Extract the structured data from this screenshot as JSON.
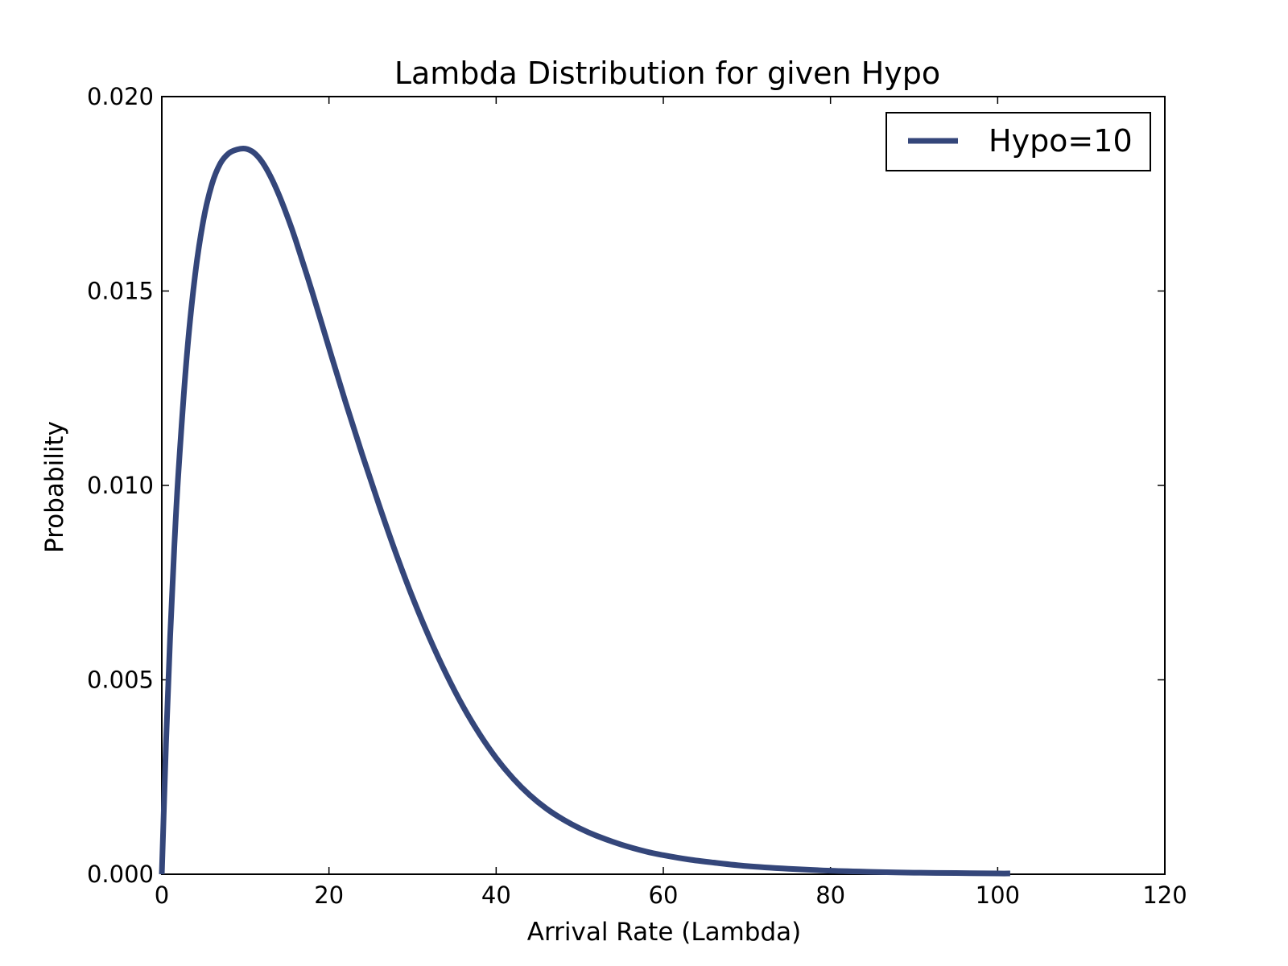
{
  "chart_data": {
    "type": "line",
    "title": "Lambda Distribution for given Hypo",
    "xlabel": "Arrival Rate (Lambda)",
    "ylabel": "Probability",
    "xlim": [
      0,
      120
    ],
    "ylim": [
      0,
      0.02
    ],
    "xticks": [
      "0",
      "20",
      "40",
      "60",
      "80",
      "100",
      "120"
    ],
    "yticks": [
      "0.000",
      "0.005",
      "0.010",
      "0.015",
      "0.020"
    ],
    "grid": false,
    "legend_position": "top-right",
    "series": [
      {
        "name": "Hypo=10",
        "color": "#34467a",
        "x": [
          0,
          0.5,
          1,
          1.5,
          2,
          3,
          4,
          5,
          6,
          7,
          8,
          9,
          10,
          11,
          12,
          13,
          14,
          15,
          16,
          18,
          20,
          22,
          24,
          26,
          28,
          30,
          32,
          34,
          36,
          38,
          40,
          42,
          44,
          46,
          48,
          50,
          52,
          55,
          58,
          60,
          63,
          66,
          70,
          75,
          80,
          85,
          90,
          95,
          100,
          101.5
        ],
        "y": [
          0,
          0.00335,
          0.00612,
          0.00844,
          0.01037,
          0.01335,
          0.01544,
          0.01685,
          0.01775,
          0.01828,
          0.01854,
          0.01864,
          0.01866,
          0.01856,
          0.01832,
          0.01795,
          0.01748,
          0.01693,
          0.01632,
          0.01497,
          0.01354,
          0.01213,
          0.01078,
          0.00949,
          0.00826,
          0.00712,
          0.00609,
          0.00516,
          0.00433,
          0.00361,
          0.00299,
          0.00247,
          0.00204,
          0.00169,
          0.00141,
          0.00118,
          0.00099,
          0.00076,
          0.00058,
          0.00049,
          0.00038,
          0.0003,
          0.00021,
          0.00014,
          9e-05,
          6e-05,
          4e-05,
          3e-05,
          2e-05,
          2e-05
        ]
      }
    ]
  }
}
